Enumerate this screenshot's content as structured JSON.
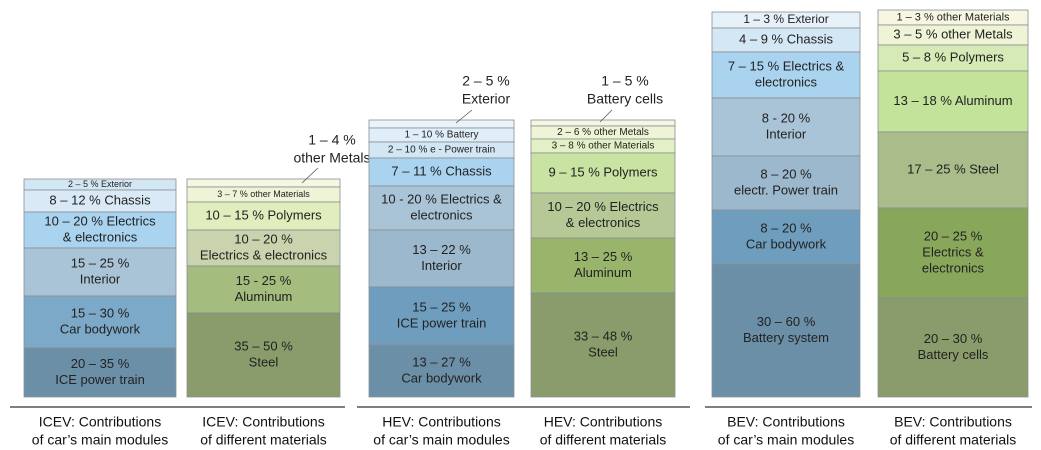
{
  "columns": [
    {
      "caption": [
        "ICEV: Contributions",
        "of car’s main modules"
      ],
      "segments": [
        {
          "lines": [
            "2 – 5 % Exterior"
          ]
        },
        {
          "lines": [
            "8 – 12 % Chassis"
          ]
        },
        {
          "lines": [
            "10 – 20 % Electrics",
            "& electronics"
          ]
        },
        {
          "lines": [
            "15 – 25 %",
            "Interior"
          ]
        },
        {
          "lines": [
            "15 – 30 %",
            "Car bodywork"
          ]
        },
        {
          "lines": [
            "20 – 35 %",
            "ICE power train"
          ]
        }
      ]
    },
    {
      "caption": [
        "ICEV: Contributions",
        "of different materials"
      ],
      "annotation": [
        "1 – 4 %",
        "other Metals"
      ],
      "segments": [
        {
          "lines": [
            "3 – 7 % other Materials"
          ]
        },
        {
          "lines": [
            "10 – 15 % Polymers"
          ]
        },
        {
          "lines": [
            "10 – 20 %",
            "Electrics & electronics"
          ]
        },
        {
          "lines": [
            "15 - 25 %",
            "Aluminum"
          ]
        },
        {
          "lines": [
            "35 – 50 %",
            "Steel"
          ]
        }
      ]
    },
    {
      "caption": [
        "HEV: Contributions",
        "of car’s main modules"
      ],
      "annotation": [
        "2 – 5 %",
        "Exterior"
      ],
      "segments": [
        {
          "lines": [
            "1 – 10 % Battery"
          ]
        },
        {
          "lines": [
            "2 – 10 % e - Power train"
          ]
        },
        {
          "lines": [
            "7 – 11 % Chassis"
          ]
        },
        {
          "lines": [
            "10 - 20 % Electrics &",
            "electronics"
          ]
        },
        {
          "lines": [
            "13 – 22 %",
            "Interior"
          ]
        },
        {
          "lines": [
            "15 – 25 %",
            "ICE power train"
          ]
        },
        {
          "lines": [
            "13 – 27 %",
            "Car bodywork"
          ]
        }
      ]
    },
    {
      "caption": [
        "HEV: Contributions",
        "of different materials"
      ],
      "annotation": [
        "1 – 5 %",
        "Battery cells"
      ],
      "segments": [
        {
          "lines": [
            "2 – 6 % other Metals"
          ]
        },
        {
          "lines": [
            "3 – 8 % other Materials"
          ]
        },
        {
          "lines": [
            "9 – 15 % Polymers"
          ]
        },
        {
          "lines": [
            "10 – 20 % Electrics",
            "& electronics"
          ]
        },
        {
          "lines": [
            "13 – 25 %",
            "Aluminum"
          ]
        },
        {
          "lines": [
            "33 – 48 %",
            "Steel"
          ]
        }
      ]
    },
    {
      "caption": [
        "BEV: Contributions",
        "of car’s main modules"
      ],
      "segments": [
        {
          "lines": [
            "1 – 3 % Exterior"
          ]
        },
        {
          "lines": [
            "4 – 9 % Chassis"
          ]
        },
        {
          "lines": [
            "7 – 15 % Electrics &",
            "electronics"
          ]
        },
        {
          "lines": [
            "8 - 20 %",
            "Interior"
          ]
        },
        {
          "lines": [
            "8 – 20 %",
            "electr. Power train"
          ]
        },
        {
          "lines": [
            "8 – 20 %",
            "Car bodywork"
          ]
        },
        {
          "lines": [
            "30 – 60 %",
            "Battery system"
          ]
        }
      ]
    },
    {
      "caption": [
        "BEV: Contributions",
        "of different materials"
      ],
      "segments": [
        {
          "lines": [
            "1 – 3 % other Materials"
          ]
        },
        {
          "lines": [
            "3 – 5 % other Metals"
          ]
        },
        {
          "lines": [
            "5 – 8 % Polymers"
          ]
        },
        {
          "lines": [
            "13 – 18 % Aluminum"
          ]
        },
        {
          "lines": [
            "17 – 25 % Steel"
          ]
        },
        {
          "lines": [
            "20 – 25 %",
            "Electrics &",
            "electronics"
          ]
        },
        {
          "lines": [
            "20 – 30 %",
            "Battery cells"
          ]
        }
      ]
    }
  ]
}
